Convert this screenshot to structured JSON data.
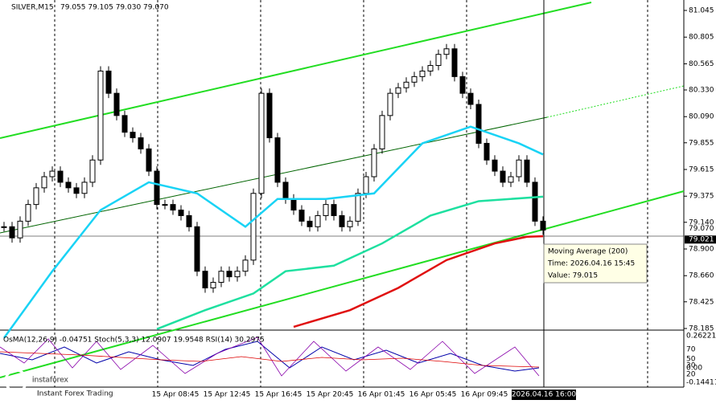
{
  "header": {
    "symbol": "SILVER,M15",
    "ohlc": "79.055 79.105 79.030 79.070"
  },
  "price_axis": [
    {
      "value": 81.045,
      "label": "81.045"
    },
    {
      "value": 80.805,
      "label": "80.805"
    },
    {
      "value": 80.565,
      "label": "80.565"
    },
    {
      "value": 80.33,
      "label": "80.330"
    },
    {
      "value": 80.09,
      "label": "80.090"
    },
    {
      "value": 79.855,
      "label": "79.855"
    },
    {
      "value": 79.615,
      "label": "79.615"
    },
    {
      "value": 79.375,
      "label": "79.375"
    },
    {
      "value": 79.14,
      "label": "79.140"
    },
    {
      "value": 78.9,
      "label": "78.900"
    },
    {
      "value": 78.66,
      "label": "78.660"
    },
    {
      "value": 78.425,
      "label": "78.425"
    },
    {
      "value": 78.185,
      "label": "78.185"
    }
  ],
  "current_prices": [
    {
      "value": 79.07,
      "label": "79.070"
    },
    {
      "value": 79.021,
      "label": "79.021"
    }
  ],
  "closes": [
    79.1,
    79.0,
    79.15,
    79.3,
    79.45,
    79.55,
    79.6,
    79.5,
    79.45,
    79.4,
    79.5,
    79.7,
    80.5,
    80.3,
    80.1,
    79.95,
    79.9,
    79.8,
    79.6,
    79.3,
    79.3,
    79.25,
    79.2,
    79.1,
    78.7,
    78.55,
    78.6,
    78.7,
    78.65,
    78.7,
    78.8,
    79.4,
    80.3,
    79.9,
    79.5,
    79.35,
    79.25,
    79.15,
    79.1,
    79.2,
    79.3,
    79.2,
    79.1,
    79.15,
    79.4,
    79.55,
    79.8,
    80.1,
    80.3,
    80.35,
    80.4,
    80.45,
    80.5,
    80.55,
    80.65,
    80.7,
    80.45,
    80.3,
    80.2,
    79.85,
    79.7,
    79.6,
    79.5,
    79.55,
    79.7,
    79.5,
    79.15,
    79.07
  ],
  "moving_averages": [
    {
      "color": "#19d3f5",
      "x": [
        0,
        6,
        12,
        18,
        24,
        30,
        34,
        40,
        46,
        52,
        58,
        64,
        67
      ],
      "values": [
        78.1,
        78.7,
        79.25,
        79.5,
        79.4,
        79.1,
        79.35,
        79.35,
        79.4,
        79.85,
        80.0,
        79.85,
        79.75
      ]
    },
    {
      "color": "#1ee0a0",
      "x": [
        19,
        25,
        31,
        35,
        41,
        47,
        53,
        59,
        67
      ],
      "values": [
        78.18,
        78.35,
        78.5,
        78.7,
        78.75,
        78.95,
        79.2,
        79.33,
        79.37
      ]
    },
    {
      "color": "#e01010",
      "x": [
        36,
        43,
        49,
        55,
        61,
        65,
        67
      ],
      "values": [
        78.2,
        78.35,
        78.55,
        78.8,
        78.95,
        79.01,
        79.015
      ]
    }
  ],
  "tooltip": {
    "name": "Moving Average (200)",
    "time": "Time: 2026.04.16 15:45",
    "value": "Value: 79.015"
  },
  "indicators": "OsMA(12,26,9) -0.04751  Stoch(5,3,3) 12.0907 19.9548  RSI(14) 30.2975",
  "osc_axis": [
    "0.26221",
    "70",
    "50",
    "30",
    "0.00",
    "20",
    "-0.14411"
  ],
  "time_axis": [
    "15 Apr 08:45",
    "15 Apr 12:45",
    "15 Apr 16:45",
    "15 Apr 20:45",
    "16 Apr 01:45",
    "16 Apr 05:45",
    "16 Apr 09:45"
  ],
  "time_current": "2026.04.16 16:00",
  "logo": {
    "brand": "instaforex",
    "slogan": "Instant Forex Trading"
  }
}
